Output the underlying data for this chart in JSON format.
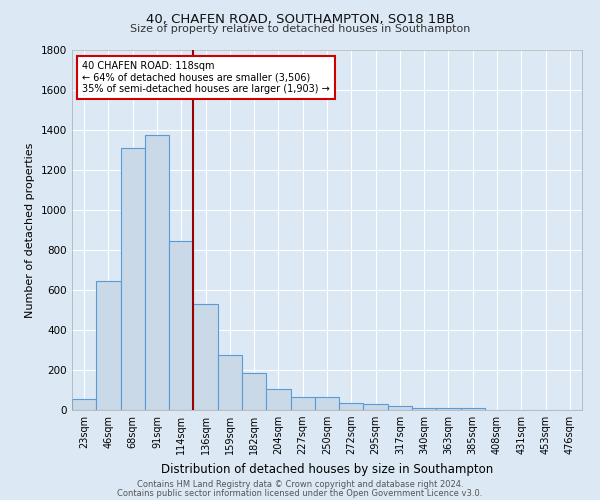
{
  "title1": "40, CHAFEN ROAD, SOUTHAMPTON, SO18 1BB",
  "title2": "Size of property relative to detached houses in Southampton",
  "xlabel": "Distribution of detached houses by size in Southampton",
  "ylabel": "Number of detached properties",
  "footer1": "Contains HM Land Registry data © Crown copyright and database right 2024.",
  "footer2": "Contains public sector information licensed under the Open Government Licence v3.0.",
  "bar_labels": [
    "23sqm",
    "46sqm",
    "68sqm",
    "91sqm",
    "114sqm",
    "136sqm",
    "159sqm",
    "182sqm",
    "204sqm",
    "227sqm",
    "250sqm",
    "272sqm",
    "295sqm",
    "317sqm",
    "340sqm",
    "363sqm",
    "385sqm",
    "408sqm",
    "431sqm",
    "453sqm",
    "476sqm"
  ],
  "bar_values": [
    55,
    645,
    1310,
    1375,
    845,
    530,
    275,
    185,
    105,
    65,
    65,
    35,
    30,
    20,
    8,
    12,
    8,
    0,
    0,
    0,
    0
  ],
  "bar_color": "#c9d9e8",
  "bar_edge_color": "#5b9bd5",
  "annotation_text_line1": "40 CHAFEN ROAD: 118sqm",
  "annotation_text_line2": "← 64% of detached houses are smaller (3,506)",
  "annotation_text_line3": "35% of semi-detached houses are larger (1,903) →",
  "annotation_box_color": "#ffffff",
  "annotation_box_edge": "#cc0000",
  "vline_color": "#990000",
  "bg_color": "#dce9f5",
  "grid_color": "#ffffff",
  "ylim": [
    0,
    1800
  ],
  "yticks": [
    0,
    200,
    400,
    600,
    800,
    1000,
    1200,
    1400,
    1600,
    1800
  ]
}
